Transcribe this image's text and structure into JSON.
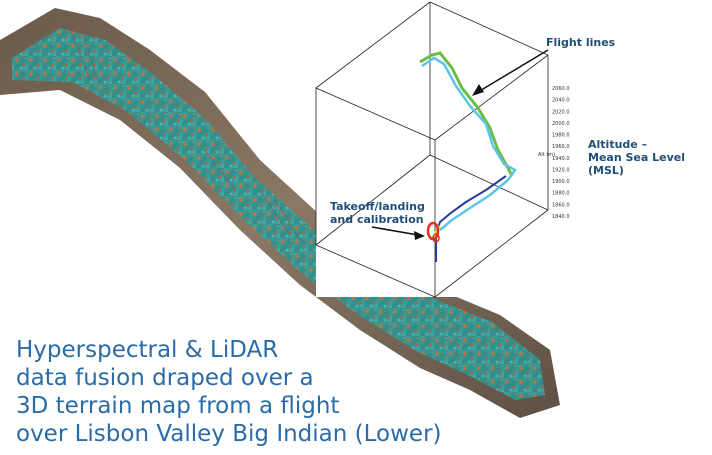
{
  "annotations": {
    "flight_lines": "Flight lines",
    "altitude_line1": "Altitude –",
    "altitude_line2": "Mean Sea Level (MSL)",
    "takeoff_line1": "Takeoff/landing",
    "takeoff_line2": "and calibration"
  },
  "caption": [
    "Hyperspectral & LiDAR",
    "data fusion draped over a",
    "3D terrain map from a flight",
    "over Lisbon Valley Big Indian (Lower)"
  ],
  "plot3d": {
    "altitude_ticks": [
      "2060.0",
      "2040.0",
      "2020.0",
      "2000.0",
      "1980.0",
      "1960.0",
      "1940.0",
      "1920.0",
      "1900.0",
      "1880.0",
      "1860.0",
      "1840.0"
    ],
    "altitude_axis_label": "Alt (m)",
    "colors": {
      "green_line": "#6cbd45",
      "cyan_line": "#5bc5e8",
      "blue_line": "#2a3a9a",
      "yellow_line": "#f0e040",
      "red_loop": "#e03020",
      "box_edge": "#222222"
    }
  },
  "colors": {
    "annotation": "#1f4e79",
    "caption": "#2b6ba6"
  }
}
